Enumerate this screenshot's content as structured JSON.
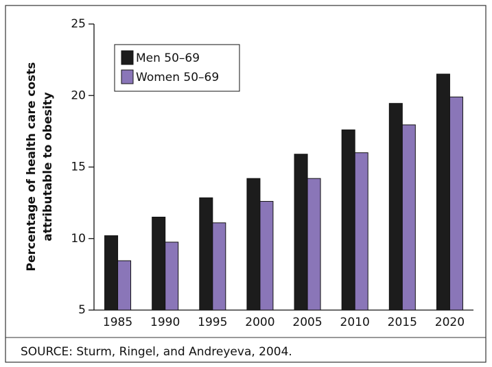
{
  "chart_data": {
    "type": "bar",
    "categories": [
      "1985",
      "1990",
      "1995",
      "2000",
      "2005",
      "2010",
      "2015",
      "2020"
    ],
    "series": [
      {
        "name": "Men 50–69",
        "color": "#1c1c1c",
        "values": [
          10.2,
          11.5,
          12.85,
          14.2,
          15.9,
          17.6,
          19.45,
          21.5
        ]
      },
      {
        "name": "Women 50–69",
        "color": "#8a76b8",
        "values": [
          8.45,
          9.75,
          11.1,
          12.6,
          14.2,
          16.0,
          17.95,
          19.9
        ]
      }
    ],
    "ylabel": [
      "Percentage of health care costs",
      "attributable to obesity"
    ],
    "ylim": [
      5,
      25
    ],
    "yticks": [
      5,
      10,
      15,
      20,
      25
    ],
    "legend": "upper left",
    "source": "SOURCE: Sturm, Ringel, and Andreyeva, 2004."
  }
}
